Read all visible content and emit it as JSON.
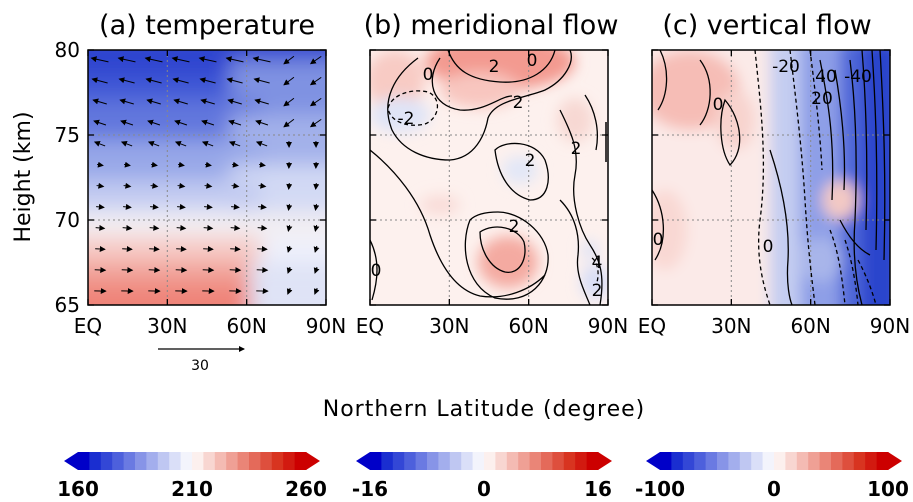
{
  "figure": {
    "xlabel": "Northern Latitude (degree)",
    "ylabel": "Height (km)"
  },
  "chart_data": [
    {
      "type": "heatmap",
      "title": "(a) temperature",
      "x_ticks": [
        "EQ",
        "30N",
        "60N",
        "90N"
      ],
      "y_ticks": [
        "65",
        "70",
        "75",
        "80"
      ],
      "xlim": [
        0,
        90
      ],
      "ylim": [
        65,
        80
      ],
      "colorbar": {
        "min": 160,
        "max": 260,
        "labels": [
          "160",
          "210",
          "260"
        ],
        "colormap": "blue-white-red"
      },
      "grid": true,
      "overlay": "wind vectors",
      "reference_vector": {
        "label": "30"
      },
      "values_description": "Cold (~165-180) near 78-80 km, warming downward; ~200-210 near 70 km, ~240-255 near 65-66 km at low latitudes"
    },
    {
      "type": "heatmap",
      "title": "(b) meridional flow",
      "x_ticks": [
        "EQ",
        "30N",
        "60N",
        "90N"
      ],
      "xlim": [
        0,
        90
      ],
      "ylim": [
        65,
        80
      ],
      "colorbar": {
        "min": -16,
        "max": 16,
        "labels": [
          "-16",
          "0",
          "16"
        ],
        "colormap": "blue-white-red"
      },
      "grid": true,
      "contour_labels": [
        "0",
        "2",
        "-2",
        "2",
        "0",
        "2",
        "2",
        "0",
        "2",
        "4"
      ],
      "values_description": "Positive (~4-8) near 78-80 km at 30-65N; weak positive patch near 67-69 km around 50N; weak negative near 76 km at 10-20N"
    },
    {
      "type": "heatmap",
      "title": "(c) vertical flow",
      "x_ticks": [
        "EQ",
        "30N",
        "60N",
        "90N"
      ],
      "xlim": [
        0,
        90
      ],
      "ylim": [
        65,
        80
      ],
      "colorbar": {
        "min": -100,
        "max": 100,
        "labels": [
          "-100",
          "0",
          "100"
        ],
        "colormap": "blue-white-red"
      },
      "grid": true,
      "contour_labels": [
        "-20",
        "40",
        "-40",
        "20",
        "0",
        "0",
        "0"
      ],
      "values_description": "Positive (~10-25) below 30N at upper levels; negative, strengthening to ~-100 toward 75-90N"
    }
  ]
}
